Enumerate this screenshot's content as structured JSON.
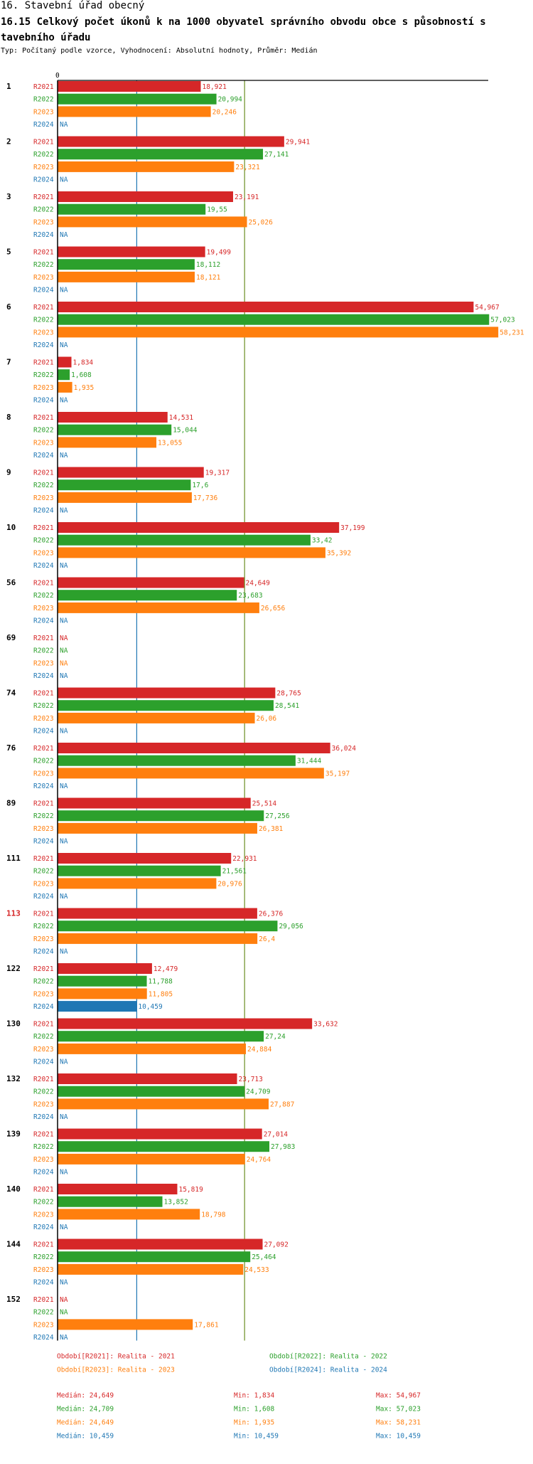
{
  "header": {
    "title": "16. Stavební úřad obecný",
    "subtitle": "16.15 Celkový počet úkonů k na 1000 obyvatel správního obvodu obce s působností s tavebního úřadu",
    "type_line": "Typ: Počítaný podle vzorce, Vyhodnocení: Absolutní hodnoty, Průměr: Medián"
  },
  "colors": {
    "R2021": "#d62728",
    "R2022": "#2ca02c",
    "R2023": "#ff7f0e",
    "R2024": "#1f77b4",
    "median_line_blue": "#1f77b4",
    "median_line_olive": "#6b8e23",
    "highlight_label": "#d62728"
  },
  "chart_data": {
    "type": "bar",
    "orientation": "horizontal",
    "axis_zero_label": "0",
    "xlim": [
      0,
      60
    ],
    "na_label": "NA",
    "series_names": [
      "R2021",
      "R2022",
      "R2023",
      "R2024"
    ],
    "reference_lines": [
      {
        "name": "median-2024",
        "value": 10.459,
        "color": "median_line_blue"
      },
      {
        "name": "median-2022",
        "value": 24.709,
        "color": "median_line_olive"
      }
    ],
    "groups": [
      {
        "id": "1",
        "highlight": false,
        "values": [
          18.921,
          20.994,
          20.246,
          null
        ],
        "labels": [
          "18,921",
          "20,994",
          "20,246",
          "NA"
        ]
      },
      {
        "id": "2",
        "highlight": false,
        "values": [
          29.941,
          27.141,
          23.321,
          null
        ],
        "labels": [
          "29,941",
          "27,141",
          "23,321",
          "NA"
        ]
      },
      {
        "id": "3",
        "highlight": false,
        "values": [
          23.191,
          19.55,
          25.026,
          null
        ],
        "labels": [
          "23,191",
          "19,55",
          "25,026",
          "NA"
        ]
      },
      {
        "id": "5",
        "highlight": false,
        "values": [
          19.499,
          18.112,
          18.121,
          null
        ],
        "labels": [
          "19,499",
          "18,112",
          "18,121",
          "NA"
        ]
      },
      {
        "id": "6",
        "highlight": false,
        "values": [
          54.967,
          57.023,
          58.231,
          null
        ],
        "labels": [
          "54,967",
          "57,023",
          "58,231",
          "NA"
        ]
      },
      {
        "id": "7",
        "highlight": false,
        "values": [
          1.834,
          1.608,
          1.935,
          null
        ],
        "labels": [
          "1,834",
          "1,608",
          "1,935",
          "NA"
        ]
      },
      {
        "id": "8",
        "highlight": false,
        "values": [
          14.531,
          15.044,
          13.055,
          null
        ],
        "labels": [
          "14,531",
          "15,044",
          "13,055",
          "NA"
        ]
      },
      {
        "id": "9",
        "highlight": false,
        "values": [
          19.317,
          17.6,
          17.736,
          null
        ],
        "labels": [
          "19,317",
          "17,6",
          "17,736",
          "NA"
        ]
      },
      {
        "id": "10",
        "highlight": false,
        "values": [
          37.199,
          33.42,
          35.392,
          null
        ],
        "labels": [
          "37,199",
          "33,42",
          "35,392",
          "NA"
        ]
      },
      {
        "id": "56",
        "highlight": false,
        "values": [
          24.649,
          23.683,
          26.656,
          null
        ],
        "labels": [
          "24,649",
          "23,683",
          "26,656",
          "NA"
        ]
      },
      {
        "id": "69",
        "highlight": false,
        "values": [
          null,
          null,
          null,
          null
        ],
        "labels": [
          "NA",
          "NA",
          "NA",
          "NA"
        ]
      },
      {
        "id": "74",
        "highlight": false,
        "values": [
          28.765,
          28.541,
          26.06,
          null
        ],
        "labels": [
          "28,765",
          "28,541",
          "26,06",
          "NA"
        ]
      },
      {
        "id": "76",
        "highlight": false,
        "values": [
          36.024,
          31.444,
          35.197,
          null
        ],
        "labels": [
          "36,024",
          "31,444",
          "35,197",
          "NA"
        ]
      },
      {
        "id": "89",
        "highlight": false,
        "values": [
          25.514,
          27.256,
          26.381,
          null
        ],
        "labels": [
          "25,514",
          "27,256",
          "26,381",
          "NA"
        ]
      },
      {
        "id": "111",
        "highlight": false,
        "values": [
          22.931,
          21.561,
          20.976,
          null
        ],
        "labels": [
          "22,931",
          "21,561",
          "20,976",
          "NA"
        ]
      },
      {
        "id": "113",
        "highlight": true,
        "values": [
          26.376,
          29.056,
          26.4,
          null
        ],
        "labels": [
          "26,376",
          "29,056",
          "26,4",
          "NA"
        ]
      },
      {
        "id": "122",
        "highlight": false,
        "values": [
          12.479,
          11.788,
          11.805,
          10.459
        ],
        "labels": [
          "12,479",
          "11,788",
          "11,805",
          "10,459"
        ]
      },
      {
        "id": "130",
        "highlight": false,
        "values": [
          33.632,
          27.24,
          24.884,
          null
        ],
        "labels": [
          "33,632",
          "27,24",
          "24,884",
          "NA"
        ]
      },
      {
        "id": "132",
        "highlight": false,
        "values": [
          23.713,
          24.709,
          27.887,
          null
        ],
        "labels": [
          "23,713",
          "24,709",
          "27,887",
          "NA"
        ]
      },
      {
        "id": "139",
        "highlight": false,
        "values": [
          27.014,
          27.983,
          24.764,
          null
        ],
        "labels": [
          "27,014",
          "27,983",
          "24,764",
          "NA"
        ]
      },
      {
        "id": "140",
        "highlight": false,
        "values": [
          15.819,
          13.852,
          18.798,
          null
        ],
        "labels": [
          "15,819",
          "13,852",
          "18,798",
          "NA"
        ]
      },
      {
        "id": "144",
        "highlight": false,
        "values": [
          27.092,
          25.464,
          24.533,
          null
        ],
        "labels": [
          "27,092",
          "25,464",
          "24,533",
          "NA"
        ]
      },
      {
        "id": "152",
        "highlight": false,
        "values": [
          null,
          null,
          17.861,
          null
        ],
        "labels": [
          "NA",
          "NA",
          "17,861",
          "NA"
        ]
      }
    ],
    "legend": [
      {
        "text": "Období[R2021]: Realita - 2021",
        "series": "R2021"
      },
      {
        "text": "Období[R2022]: Realita - 2022",
        "series": "R2022"
      },
      {
        "text": "Období[R2023]: Realita - 2023",
        "series": "R2023"
      },
      {
        "text": "Období[R2024]: Realita - 2024",
        "series": "R2024"
      }
    ],
    "stats": [
      {
        "series": "R2021",
        "median": "Medián: 24,649",
        "min": "Min: 1,834",
        "max": "Max: 54,967"
      },
      {
        "series": "R2022",
        "median": "Medián: 24,709",
        "min": "Min: 1,608",
        "max": "Max: 57,023"
      },
      {
        "series": "R2023",
        "median": "Medián: 24,649",
        "min": "Min: 1,935",
        "max": "Max: 58,231"
      },
      {
        "series": "R2024",
        "median": "Medián: 10,459",
        "min": "Min: 10,459",
        "max": "Max: 10,459"
      }
    ]
  }
}
